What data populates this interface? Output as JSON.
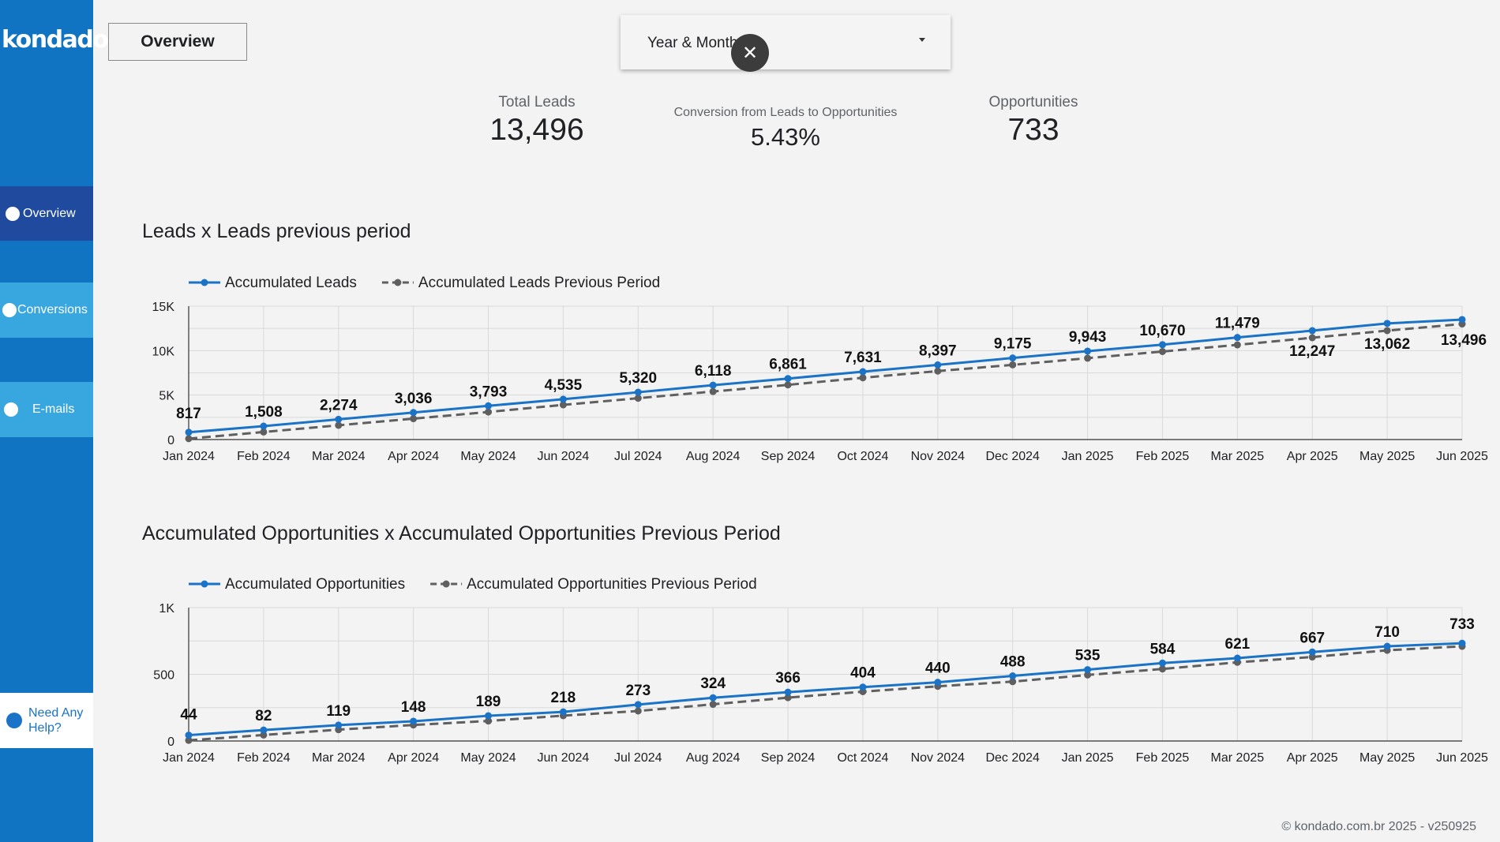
{
  "brand": {
    "logo": "kondado"
  },
  "nav": {
    "overview": "Overview",
    "conversions": "Conversions",
    "emails": "E-mails",
    "help": "Need Any Help?"
  },
  "header": {
    "page_button": "Overview",
    "filter_label": "Year & Month",
    "close_icon": "close-icon",
    "caret_icon": "caret-down-icon"
  },
  "kpis": {
    "total_leads": {
      "label": "Total Leads",
      "value": "13,496"
    },
    "conversion": {
      "label": "Conversion from Leads to Opportunities",
      "value": "5.43%"
    },
    "opportunities": {
      "label": "Opportunities",
      "value": "733"
    }
  },
  "colors": {
    "primary_series": "#1a73c7",
    "previous_series": "#5f5f5f",
    "sidebar": "#1074c2",
    "active_nav": "#1f4a9e",
    "nav_item": "#38a6df"
  },
  "footer": "© kondado.com.br 2025 - v250925",
  "chart_data": [
    {
      "type": "line",
      "title": "Leads x Leads previous period",
      "categories": [
        "Jan 2024",
        "Feb 2024",
        "Mar 2024",
        "Apr 2024",
        "May 2024",
        "Jun 2024",
        "Jul 2024",
        "Aug 2024",
        "Sep 2024",
        "Oct 2024",
        "Nov 2024",
        "Dec 2024",
        "Jan 2025",
        "Feb 2025",
        "Mar 2025",
        "Apr 2025",
        "May 2025",
        "Jun 2025"
      ],
      "series": [
        {
          "name": "Accumulated Leads",
          "values": [
            817,
            1508,
            2274,
            3036,
            3793,
            4535,
            5320,
            6118,
            6861,
            7631,
            8397,
            9175,
            9943,
            10670,
            11479,
            12247,
            13062,
            13496
          ],
          "labels": [
            "817",
            "1,508",
            "2,274",
            "3,036",
            "3,793",
            "4,535",
            "5,320",
            "6,118",
            "6,861",
            "7,631",
            "8,397",
            "9,175",
            "9,943",
            "10,670",
            "11,479",
            "12,247",
            "13,062",
            "13,496"
          ]
        },
        {
          "name": "Accumulated Leads Previous Period",
          "values": [
            100,
            850,
            1600,
            2350,
            3100,
            3900,
            4650,
            5400,
            6150,
            6950,
            7700,
            8400,
            9150,
            9900,
            10650,
            11450,
            12250,
            13000
          ]
        }
      ],
      "ylim": [
        0,
        15000
      ],
      "yticks": [
        0,
        5000,
        10000,
        15000
      ],
      "ytick_labels": [
        "0",
        "5K",
        "10K",
        "15K"
      ],
      "grid": true,
      "legend": "top-left"
    },
    {
      "type": "line",
      "title": "Accumulated Opportunities x Accumulated Opportunities Previous Period",
      "categories": [
        "Jan 2024",
        "Feb 2024",
        "Mar 2024",
        "Apr 2024",
        "May 2024",
        "Jun 2024",
        "Jul 2024",
        "Aug 2024",
        "Sep 2024",
        "Oct 2024",
        "Nov 2024",
        "Dec 2024",
        "Jan 2025",
        "Feb 2025",
        "Mar 2025",
        "Apr 2025",
        "May 2025",
        "Jun 2025"
      ],
      "series": [
        {
          "name": "Accumulated Opportunities",
          "values": [
            44,
            82,
            119,
            148,
            189,
            218,
            273,
            324,
            366,
            404,
            440,
            488,
            535,
            584,
            621,
            667,
            710,
            733
          ],
          "labels": [
            "44",
            "82",
            "119",
            "148",
            "189",
            "218",
            "273",
            "324",
            "366",
            "404",
            "440",
            "488",
            "535",
            "584",
            "621",
            "667",
            "710",
            "733"
          ]
        },
        {
          "name": "Accumulated Opportunities Previous Period",
          "values": [
            5,
            45,
            85,
            120,
            150,
            190,
            225,
            275,
            325,
            370,
            410,
            445,
            495,
            540,
            590,
            630,
            680,
            710
          ]
        }
      ],
      "ylim": [
        0,
        1000
      ],
      "yticks": [
        0,
        500,
        1000
      ],
      "ytick_labels": [
        "0",
        "500",
        "1K"
      ],
      "grid": true,
      "legend": "top-left"
    }
  ]
}
